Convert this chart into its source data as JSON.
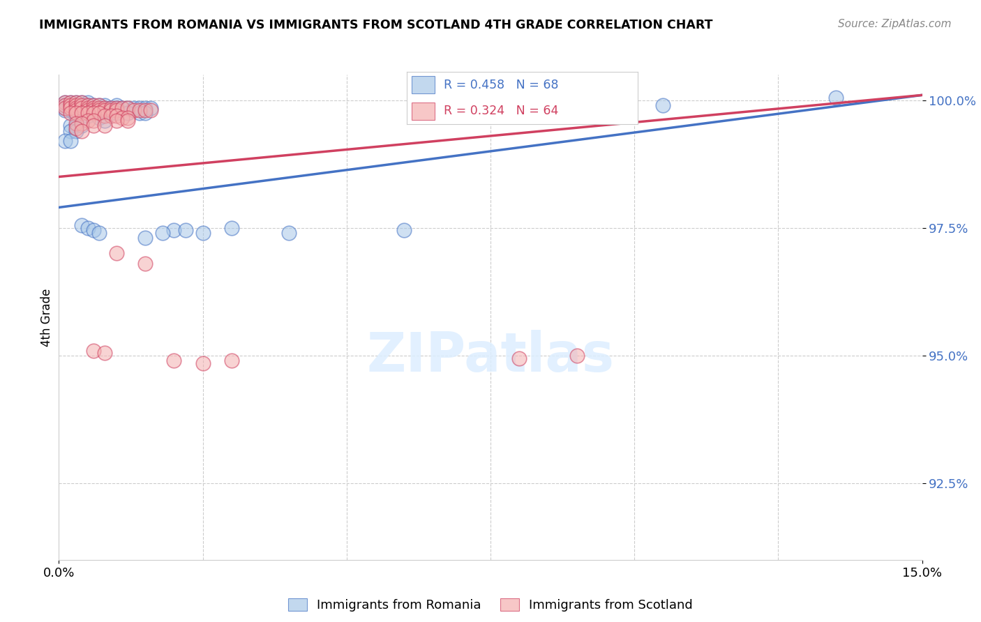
{
  "title": "IMMIGRANTS FROM ROMANIA VS IMMIGRANTS FROM SCOTLAND 4TH GRADE CORRELATION CHART",
  "source": "Source: ZipAtlas.com",
  "ylabel": "4th Grade",
  "ytick_labels": [
    "92.5%",
    "95.0%",
    "97.5%",
    "100.0%"
  ],
  "ytick_values": [
    0.925,
    0.95,
    0.975,
    1.0
  ],
  "xmin": 0.0,
  "xmax": 0.15,
  "ymin": 0.91,
  "ymax": 1.005,
  "legend_romania": "Immigrants from Romania",
  "legend_scotland": "Immigrants from Scotland",
  "romania_R": 0.458,
  "romania_N": 68,
  "scotland_R": 0.324,
  "scotland_N": 64,
  "romania_color": "#a8c8e8",
  "scotland_color": "#f4b0b0",
  "romania_line_color": "#4472c4",
  "scotland_line_color": "#d04060",
  "romania_line_x0": 0.0,
  "romania_line_y0": 0.979,
  "romania_line_x1": 0.15,
  "romania_line_y1": 1.001,
  "scotland_line_x0": 0.0,
  "scotland_line_y0": 0.985,
  "scotland_line_x1": 0.15,
  "scotland_line_y1": 1.001,
  "romania_points": [
    [
      0.001,
      0.9995
    ],
    [
      0.001,
      0.999
    ],
    [
      0.001,
      0.9985
    ],
    [
      0.001,
      0.998
    ],
    [
      0.002,
      0.9995
    ],
    [
      0.002,
      0.999
    ],
    [
      0.002,
      0.9985
    ],
    [
      0.002,
      0.998
    ],
    [
      0.003,
      0.9995
    ],
    [
      0.003,
      0.999
    ],
    [
      0.003,
      0.9985
    ],
    [
      0.003,
      0.998
    ],
    [
      0.003,
      0.9975
    ],
    [
      0.004,
      0.9995
    ],
    [
      0.004,
      0.999
    ],
    [
      0.004,
      0.9985
    ],
    [
      0.005,
      0.9995
    ],
    [
      0.005,
      0.999
    ],
    [
      0.005,
      0.9985
    ],
    [
      0.005,
      0.998
    ],
    [
      0.006,
      0.999
    ],
    [
      0.006,
      0.9985
    ],
    [
      0.006,
      0.998
    ],
    [
      0.007,
      0.999
    ],
    [
      0.007,
      0.9985
    ],
    [
      0.007,
      0.998
    ],
    [
      0.008,
      0.999
    ],
    [
      0.008,
      0.9985
    ],
    [
      0.009,
      0.9985
    ],
    [
      0.01,
      0.999
    ],
    [
      0.01,
      0.9985
    ],
    [
      0.011,
      0.9985
    ],
    [
      0.012,
      0.9985
    ],
    [
      0.013,
      0.9985
    ],
    [
      0.014,
      0.9985
    ],
    [
      0.015,
      0.9985
    ],
    [
      0.016,
      0.9985
    ],
    [
      0.008,
      0.9975
    ],
    [
      0.009,
      0.9975
    ],
    [
      0.01,
      0.9975
    ],
    [
      0.012,
      0.9975
    ],
    [
      0.014,
      0.9975
    ],
    [
      0.015,
      0.9975
    ],
    [
      0.003,
      0.997
    ],
    [
      0.005,
      0.997
    ],
    [
      0.007,
      0.9965
    ],
    [
      0.008,
      0.996
    ],
    [
      0.002,
      0.995
    ],
    [
      0.003,
      0.995
    ],
    [
      0.004,
      0.995
    ],
    [
      0.002,
      0.994
    ],
    [
      0.003,
      0.994
    ],
    [
      0.001,
      0.992
    ],
    [
      0.002,
      0.992
    ],
    [
      0.004,
      0.9755
    ],
    [
      0.005,
      0.975
    ],
    [
      0.006,
      0.9745
    ],
    [
      0.007,
      0.974
    ],
    [
      0.02,
      0.9745
    ],
    [
      0.03,
      0.975
    ],
    [
      0.018,
      0.974
    ],
    [
      0.022,
      0.9745
    ],
    [
      0.015,
      0.973
    ],
    [
      0.025,
      0.974
    ],
    [
      0.04,
      0.974
    ],
    [
      0.06,
      0.9745
    ],
    [
      0.105,
      0.999
    ],
    [
      0.135,
      1.0005
    ]
  ],
  "scotland_points": [
    [
      0.001,
      0.9995
    ],
    [
      0.001,
      0.999
    ],
    [
      0.001,
      0.9985
    ],
    [
      0.002,
      0.9995
    ],
    [
      0.002,
      0.999
    ],
    [
      0.002,
      0.9985
    ],
    [
      0.003,
      0.9995
    ],
    [
      0.003,
      0.999
    ],
    [
      0.003,
      0.9985
    ],
    [
      0.003,
      0.998
    ],
    [
      0.004,
      0.9995
    ],
    [
      0.004,
      0.999
    ],
    [
      0.004,
      0.9985
    ],
    [
      0.005,
      0.999
    ],
    [
      0.005,
      0.9985
    ],
    [
      0.005,
      0.998
    ],
    [
      0.006,
      0.999
    ],
    [
      0.006,
      0.9985
    ],
    [
      0.006,
      0.998
    ],
    [
      0.007,
      0.999
    ],
    [
      0.007,
      0.9985
    ],
    [
      0.007,
      0.998
    ],
    [
      0.008,
      0.9985
    ],
    [
      0.008,
      0.998
    ],
    [
      0.009,
      0.9985
    ],
    [
      0.009,
      0.998
    ],
    [
      0.01,
      0.9985
    ],
    [
      0.01,
      0.998
    ],
    [
      0.011,
      0.9985
    ],
    [
      0.012,
      0.9985
    ],
    [
      0.013,
      0.998
    ],
    [
      0.014,
      0.998
    ],
    [
      0.015,
      0.998
    ],
    [
      0.016,
      0.998
    ],
    [
      0.002,
      0.9975
    ],
    [
      0.003,
      0.9975
    ],
    [
      0.004,
      0.9975
    ],
    [
      0.005,
      0.9975
    ],
    [
      0.006,
      0.9975
    ],
    [
      0.007,
      0.9975
    ],
    [
      0.008,
      0.997
    ],
    [
      0.009,
      0.997
    ],
    [
      0.01,
      0.997
    ],
    [
      0.011,
      0.9965
    ],
    [
      0.012,
      0.9965
    ],
    [
      0.005,
      0.996
    ],
    [
      0.006,
      0.996
    ],
    [
      0.01,
      0.996
    ],
    [
      0.012,
      0.996
    ],
    [
      0.003,
      0.9955
    ],
    [
      0.004,
      0.9955
    ],
    [
      0.006,
      0.995
    ],
    [
      0.008,
      0.995
    ],
    [
      0.003,
      0.9945
    ],
    [
      0.004,
      0.994
    ],
    [
      0.01,
      0.97
    ],
    [
      0.015,
      0.968
    ],
    [
      0.006,
      0.951
    ],
    [
      0.008,
      0.9505
    ],
    [
      0.02,
      0.949
    ],
    [
      0.025,
      0.9485
    ],
    [
      0.03,
      0.949
    ],
    [
      0.08,
      0.9495
    ],
    [
      0.09,
      0.95
    ]
  ]
}
